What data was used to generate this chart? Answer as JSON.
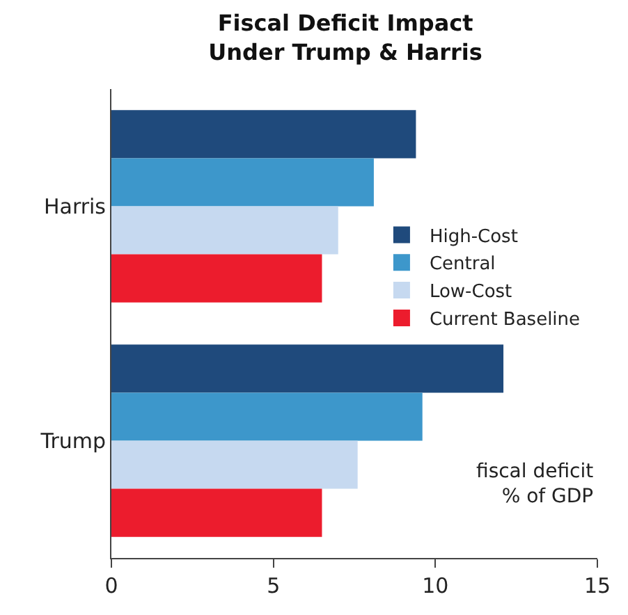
{
  "chart_data": {
    "type": "bar",
    "orientation": "horizontal",
    "title": "Fiscal Deficit Impact\nUnder Trump & Harris",
    "categories": [
      "Harris",
      "Trump"
    ],
    "series": [
      {
        "name": "High-Cost",
        "color": "#1f4a7c",
        "values": [
          9.4,
          12.1
        ]
      },
      {
        "name": "Central",
        "color": "#3d97cb",
        "values": [
          8.1,
          9.6
        ]
      },
      {
        "name": "Low-Cost",
        "color": "#c6d9f0",
        "values": [
          7.0,
          7.6
        ]
      },
      {
        "name": "Current Baseline",
        "color": "#ec1c2d",
        "values": [
          6.5,
          6.5
        ]
      }
    ],
    "xlim": [
      0,
      15
    ],
    "xticks": [
      0,
      5,
      10,
      15
    ],
    "legend": "right",
    "annotations": [
      "fiscal deficit\n% of GDP"
    ]
  }
}
